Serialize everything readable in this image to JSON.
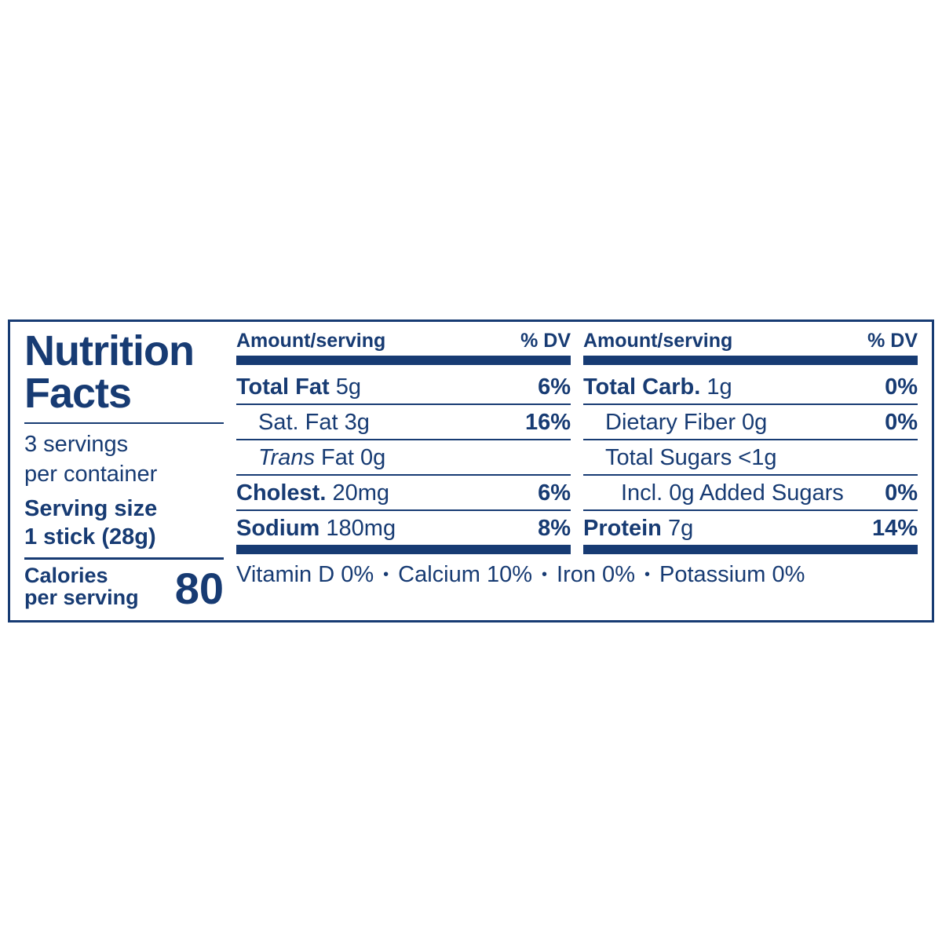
{
  "colors": {
    "ink": "#173b73",
    "bg": "#ffffff"
  },
  "title": "Nutrition Facts",
  "servings_line1": "3 servings",
  "servings_line2": "per container",
  "serving_size_line1": "Serving size",
  "serving_size_line2": "1 stick (28g)",
  "calories_label1": "Calories",
  "calories_label2": "per serving",
  "calories_value": "80",
  "header_amount": "Amount/serving",
  "header_dv": "% DV",
  "col1": {
    "r1_label_bold": "Total Fat",
    "r1_label_rest": " 5g",
    "r1_dv": "6%",
    "r2_label": "Sat. Fat 3g",
    "r2_dv": "16%",
    "r3_label_ital": "Trans",
    "r3_label_rest": " Fat 0g",
    "r3_dv": "",
    "r4_label_bold": "Cholest.",
    "r4_label_rest": " 20mg",
    "r4_dv": "6%",
    "r5_label_bold": "Sodium",
    "r5_label_rest": " 180mg",
    "r5_dv": "8%"
  },
  "col2": {
    "r1_label_bold": "Total Carb.",
    "r1_label_rest": " 1g",
    "r1_dv": "0%",
    "r2_label": "Dietary Fiber 0g",
    "r2_dv": "0%",
    "r3_label": "Total Sugars <1g",
    "r3_dv": "",
    "r4_label": "Incl. 0g Added Sugars",
    "r4_dv": "0%",
    "r5_label_bold": "Protein",
    "r5_label_rest": " 7g",
    "r5_dv": "14%"
  },
  "vitamins": {
    "v1": "Vitamin D 0%",
    "v2": "Calcium 10%",
    "v3": "Iron 0%",
    "v4": "Potassium 0%"
  }
}
